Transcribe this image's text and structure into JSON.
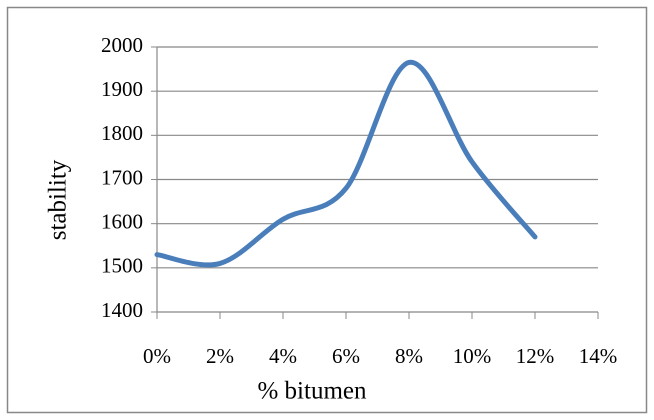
{
  "chart_data": {
    "type": "line",
    "x_label": "% bitumen",
    "y_label": "stability",
    "x": [
      0,
      2,
      4,
      6,
      8,
      10,
      12
    ],
    "series": [
      {
        "name": "stability",
        "color": "#4a7ebb",
        "values": [
          1530,
          1510,
          1610,
          1680,
          1965,
          1740,
          1570
        ]
      }
    ],
    "xlim": [
      0,
      14
    ],
    "xticks": [
      {
        "value": 0,
        "label": "0%"
      },
      {
        "value": 2,
        "label": "2%"
      },
      {
        "value": 4,
        "label": "4%"
      },
      {
        "value": 6,
        "label": "6%"
      },
      {
        "value": 8,
        "label": "8%"
      },
      {
        "value": 10,
        "label": "10%"
      },
      {
        "value": 12,
        "label": "12%"
      },
      {
        "value": 14,
        "label": "14%"
      }
    ],
    "ylim": [
      1400,
      2000
    ],
    "yticks": [
      1400,
      1500,
      1600,
      1700,
      1800,
      1900,
      2000
    ],
    "grid": true,
    "smooth": true
  }
}
